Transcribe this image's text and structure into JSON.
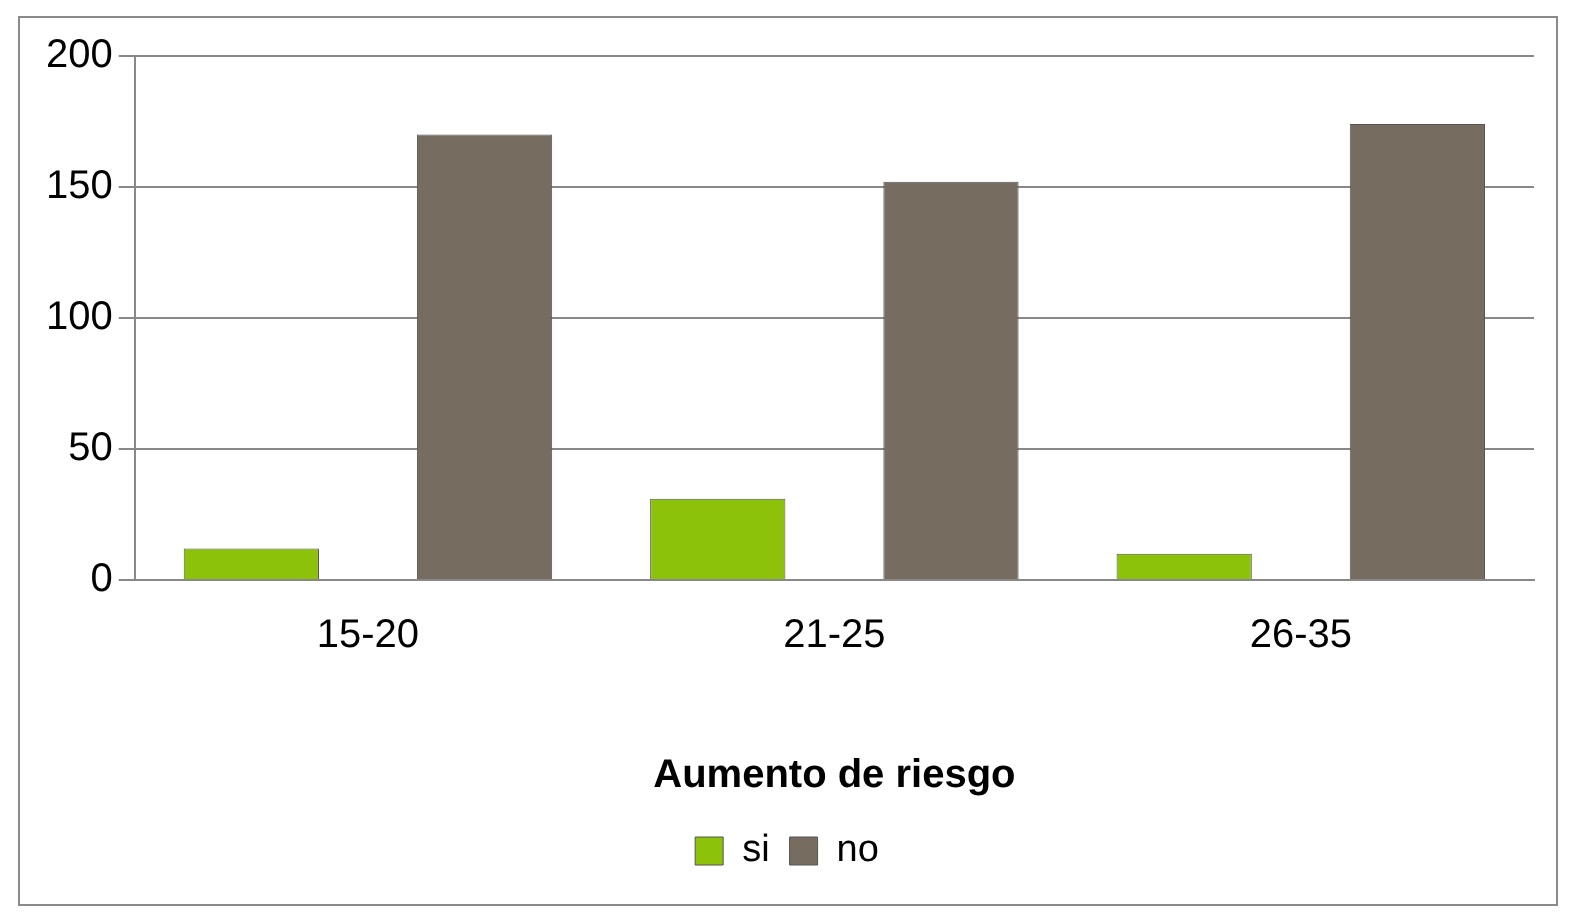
{
  "chart_data": {
    "type": "bar",
    "xlabel": "Aumento de riesgo",
    "categories": [
      "15-20",
      "21-25",
      "26-35"
    ],
    "series": [
      {
        "name": "si",
        "color": "#8cc20a",
        "values": [
          12,
          31,
          10
        ]
      },
      {
        "name": "no",
        "color": "#766c5f",
        "values": [
          170,
          152,
          174
        ]
      }
    ],
    "ylim": [
      0,
      200
    ],
    "yticks": [
      0,
      50,
      100,
      150,
      200
    ],
    "grid": "y",
    "legend": "bottom"
  }
}
